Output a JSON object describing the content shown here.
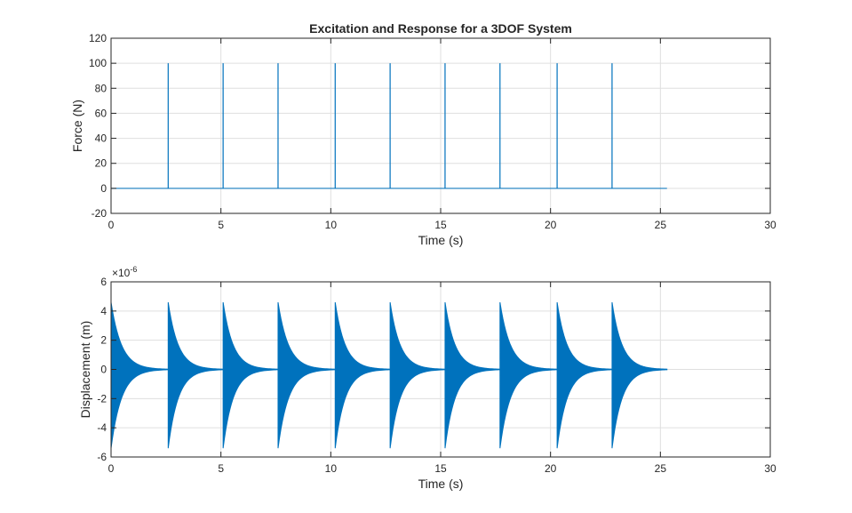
{
  "chart_data": [
    {
      "type": "line",
      "title": "Excitation and Response for a 3DOF System",
      "xlabel": "Time (s)",
      "ylabel": "Force (N)",
      "xlim": [
        0,
        30
      ],
      "ylim": [
        -20,
        120
      ],
      "xticks": [
        0,
        5,
        10,
        15,
        20,
        25,
        30
      ],
      "yticks": [
        -20,
        0,
        20,
        40,
        60,
        80,
        100,
        120
      ],
      "grid": true,
      "line_color": "#0072BD",
      "series": [
        {
          "signal": "impulse train",
          "impulse_times": [
            2.6,
            5.1,
            7.6,
            10.2,
            12.7,
            15.2,
            17.7,
            20.3,
            22.8
          ],
          "impulse_amplitude": 100,
          "baseline": 0,
          "t_end": 25.3
        }
      ]
    },
    {
      "type": "line",
      "title": "",
      "xlabel": "Time (s)",
      "ylabel": "Displacement (m)",
      "xlim": [
        0,
        30
      ],
      "ylim": [
        -6,
        6
      ],
      "yscale_exponent_label": "×10",
      "yscale_exponent": "-6",
      "xticks": [
        0,
        5,
        10,
        15,
        20,
        25,
        30
      ],
      "yticks": [
        -6,
        -4,
        -2,
        0,
        2,
        4,
        6
      ],
      "grid": true,
      "line_color": "#0072BD",
      "series": [
        {
          "signal": "decaying oscillation bursts",
          "burst_start_times": [
            0,
            2.6,
            5.1,
            7.6,
            10.2,
            12.7,
            15.2,
            17.7,
            20.3,
            22.8
          ],
          "peak_positive": 4.6,
          "peak_negative": -5.4,
          "t_end": 25.3
        }
      ]
    }
  ]
}
